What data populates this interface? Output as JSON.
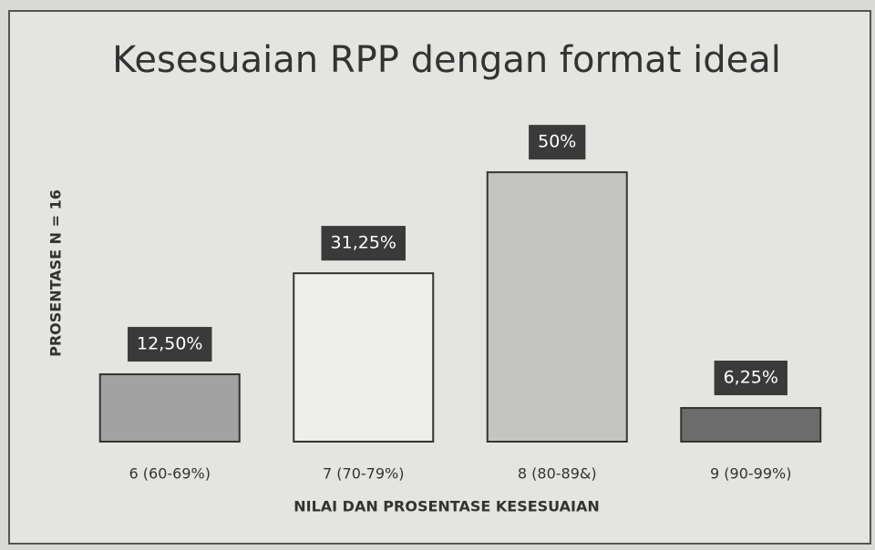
{
  "chart_data": {
    "type": "bar",
    "title": "Kesesuaian RPP dengan format ideal",
    "x_label": "NILAI DAN PROSENTASE KESESUAIAN",
    "y_label": "PROSENTASE N = 16",
    "categories": [
      "6 (60-69%)",
      "7 (70-79%)",
      "8 (80-89&)",
      "9 (90-99%)"
    ],
    "values": [
      12.5,
      31.25,
      50,
      6.25
    ],
    "value_labels": [
      "12,50%",
      "31,25%",
      "50%",
      "6,25%"
    ],
    "colors": [
      "#a2a2a2",
      "#eeeeec",
      "#c4c4c2",
      "#6c6c6c"
    ],
    "ylim": [
      0,
      60
    ]
  }
}
